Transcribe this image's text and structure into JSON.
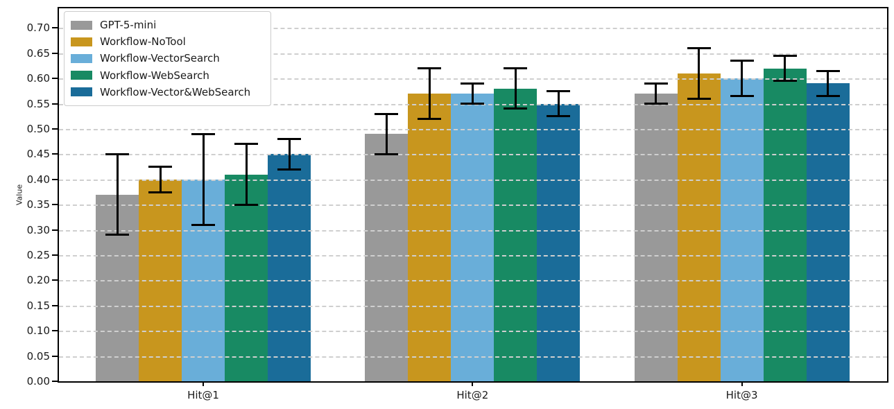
{
  "chart_data": {
    "type": "bar",
    "title": "",
    "xlabel": "",
    "ylabel": "Value",
    "categories": [
      "Hit@1",
      "Hit@2",
      "Hit@3"
    ],
    "series": [
      {
        "name": "GPT-5-mini",
        "color": "#999999",
        "values": [
          0.37,
          0.49,
          0.57
        ],
        "errors": [
          0.08,
          0.04,
          0.02
        ]
      },
      {
        "name": "Workflow-NoTool",
        "color": "#C8961E",
        "values": [
          0.4,
          0.57,
          0.61
        ],
        "errors": [
          0.025,
          0.05,
          0.05
        ]
      },
      {
        "name": "Workflow-VectorSearch",
        "color": "#69AED9",
        "values": [
          0.4,
          0.57,
          0.6
        ],
        "errors": [
          0.09,
          0.02,
          0.035
        ]
      },
      {
        "name": "Workflow-WebSearch",
        "color": "#188A63",
        "values": [
          0.41,
          0.58,
          0.62
        ],
        "errors": [
          0.06,
          0.04,
          0.025
        ]
      },
      {
        "name": "Workflow-Vector&WebSearch",
        "color": "#1A6C99",
        "values": [
          0.45,
          0.55,
          0.59
        ],
        "errors": [
          0.03,
          0.025,
          0.025
        ]
      }
    ],
    "error_bars": true,
    "ylim": [
      0.0,
      0.739
    ],
    "y_tick_labels": [
      "0.00",
      "0.05",
      "0.10",
      "0.15",
      "0.20",
      "0.25",
      "0.30",
      "0.35",
      "0.40",
      "0.45",
      "0.50",
      "0.55",
      "0.60",
      "0.65",
      "0.70"
    ],
    "grid": "horizontal-dashed",
    "grid_color": "#cfcfcf",
    "legend_position": "upper-left",
    "error_bar_color": "#000000",
    "spine_color": "#000000"
  }
}
